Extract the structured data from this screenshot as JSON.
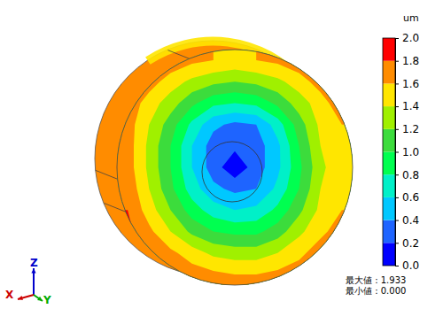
{
  "chart_data": {
    "type": "contour",
    "colorbar": {
      "title": "um",
      "range": [
        0,
        2
      ],
      "ticks": [
        {
          "value": 0,
          "label": "0.0"
        },
        {
          "value": 0.2,
          "label": "0.2"
        },
        {
          "value": 0.4,
          "label": "0.4"
        },
        {
          "value": 0.6,
          "label": "0.6"
        },
        {
          "value": 0.8,
          "label": "0.8"
        },
        {
          "value": 1,
          "label": "1.0"
        },
        {
          "value": 1.2,
          "label": "1.2"
        },
        {
          "value": 1.4,
          "label": "1.4"
        },
        {
          "value": 1.6,
          "label": "1.6"
        },
        {
          "value": 1.8,
          "label": "1.8"
        },
        {
          "value": 2,
          "label": "2.0"
        }
      ]
    },
    "colors": [
      "#0000ff",
      "#1e64ff",
      "#00c8ff",
      "#00f0c8",
      "#00ff50",
      "#3cdc3c",
      "#a0f000",
      "#ffe600",
      "#ff8c00",
      "#ff0000"
    ],
    "cells": [
      [
        1.9,
        1.85,
        1.75,
        1.65,
        1.6,
        1.55,
        1.6,
        1.65,
        1.75,
        1.85,
        1.9
      ],
      [
        1.85,
        1.7,
        1.5,
        1.35,
        1.25,
        1.2,
        1.25,
        1.35,
        1.5,
        1.7,
        1.85
      ],
      [
        1.75,
        1.5,
        1.3,
        1.05,
        0.85,
        0.8,
        0.85,
        1.05,
        1.3,
        1.5,
        1.75
      ],
      [
        1.7,
        1.4,
        1.1,
        0.75,
        0.45,
        0.35,
        0.4,
        0.7,
        1.1,
        1.45,
        1.6
      ],
      [
        1.7,
        1.35,
        1.0,
        0.6,
        0.3,
        0.25,
        0.3,
        0.55,
        1.0,
        1.4,
        1.55
      ],
      [
        1.7,
        1.35,
        1.0,
        0.6,
        0.3,
        0.05,
        0.3,
        0.55,
        0.95,
        1.35,
        1.55
      ],
      [
        1.75,
        1.4,
        1.05,
        0.7,
        0.45,
        0.35,
        0.4,
        0.65,
        1.0,
        1.4,
        1.55
      ],
      [
        1.8,
        1.5,
        1.2,
        0.9,
        0.7,
        0.6,
        0.65,
        0.85,
        1.15,
        1.45,
        1.6
      ],
      [
        1.85,
        1.65,
        1.4,
        1.15,
        1.0,
        0.95,
        0.95,
        1.1,
        1.35,
        1.55,
        1.7
      ],
      [
        1.9,
        1.8,
        1.65,
        1.5,
        1.35,
        1.3,
        1.3,
        1.4,
        1.55,
        1.7,
        1.85
      ],
      [
        1.93,
        1.9,
        1.8,
        1.7,
        1.65,
        1.6,
        1.6,
        1.65,
        1.7,
        1.8,
        1.9
      ]
    ],
    "annotations": [
      {
        "label": "最大値 : 1.933",
        "value": 1.933
      },
      {
        "label": "最小値 : 0.000",
        "value": 0
      }
    ],
    "triad": {
      "x": "X",
      "y": "Y",
      "z": "Z"
    }
  }
}
